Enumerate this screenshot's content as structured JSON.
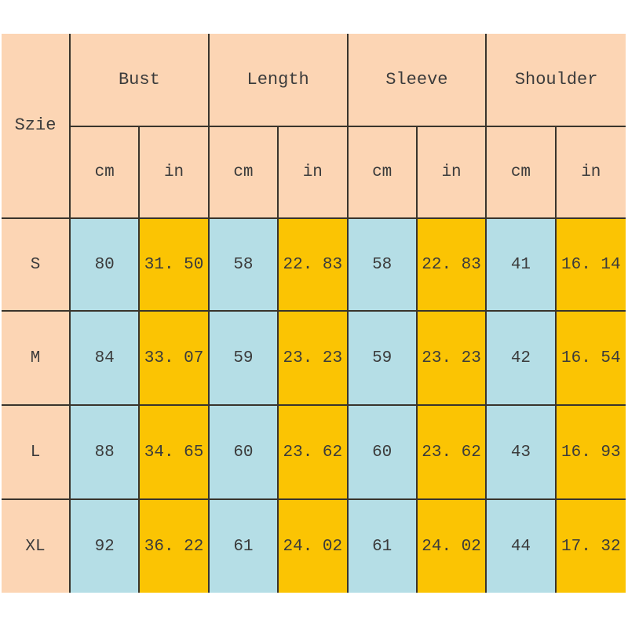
{
  "table": {
    "size_header": "Szie",
    "groups": [
      "Bust",
      "Length",
      "Sleeve",
      "Shoulder"
    ],
    "units": [
      "cm",
      "in",
      "cm",
      "in",
      "cm",
      "in",
      "cm",
      "in"
    ],
    "rows": [
      {
        "size": "S",
        "values": [
          "80",
          "31. 50",
          "58",
          "22. 83",
          "58",
          "22. 83",
          "41",
          "16. 14"
        ]
      },
      {
        "size": "M",
        "values": [
          "84",
          "33. 07",
          "59",
          "23. 23",
          "59",
          "23. 23",
          "42",
          "16. 54"
        ]
      },
      {
        "size": "L",
        "values": [
          "88",
          "34. 65",
          "60",
          "23. 62",
          "60",
          "23. 62",
          "43",
          "16. 93"
        ]
      },
      {
        "size": "XL",
        "values": [
          "92",
          "36. 22",
          "61",
          "24. 02",
          "61",
          "24. 02",
          "44",
          "17. 32"
        ]
      }
    ],
    "colors": {
      "header_background": "#fcd5b4",
      "cm_cell_background": "#b5dee6",
      "in_cell_background": "#fbc403",
      "grid_border": "#39342c",
      "text": "#3b3b3b"
    }
  },
  "chart_data": {
    "type": "table",
    "title": "",
    "columns": [
      "Szie",
      "Bust cm",
      "Bust in",
      "Length cm",
      "Length in",
      "Sleeve cm",
      "Sleeve in",
      "Shoulder cm",
      "Shoulder in"
    ],
    "rows": [
      [
        "S",
        80,
        31.5,
        58,
        22.83,
        58,
        22.83,
        41,
        16.14
      ],
      [
        "M",
        84,
        33.07,
        59,
        23.23,
        59,
        23.23,
        42,
        16.54
      ],
      [
        "L",
        88,
        34.65,
        60,
        23.62,
        60,
        23.62,
        43,
        16.93
      ],
      [
        "XL",
        92,
        36.22,
        61,
        24.02,
        61,
        24.02,
        44,
        17.32
      ]
    ],
    "layout": {
      "column_groups": [
        {
          "label": "Bust",
          "sub": [
            "cm",
            "in"
          ]
        },
        {
          "label": "Length",
          "sub": [
            "cm",
            "in"
          ]
        },
        {
          "label": "Sleeve",
          "sub": [
            "cm",
            "in"
          ]
        },
        {
          "label": "Shoulder",
          "sub": [
            "cm",
            "in"
          ]
        }
      ],
      "grid": true
    }
  }
}
